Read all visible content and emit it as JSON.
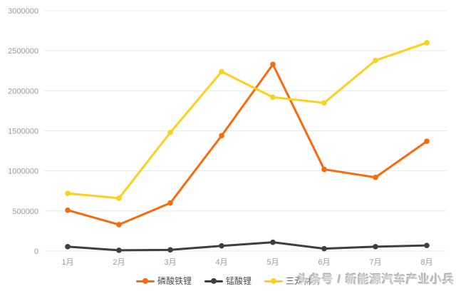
{
  "watermark": {
    "text": "头条号 / 新能源汽车产业小兵"
  },
  "colors": {
    "background": "#ffffff",
    "gridline": "#e9e9e9",
    "axis_text": "#9a9a9a",
    "legend_text": "#4d4d4d",
    "watermark_text": "#c9c9c9",
    "series_orange": "#f9690e",
    "series_dark": "#3f3f3f",
    "series_yellow": "#fdd01e"
  },
  "chart_data": {
    "type": "line",
    "title": "",
    "xlabel": "",
    "ylabel": "",
    "grid": true,
    "legend_position": "bottom",
    "marker": "circle",
    "categories": [
      "1月",
      "2月",
      "3月",
      "4月",
      "5月",
      "6月",
      "7月",
      "8月"
    ],
    "ylim": [
      0,
      3000000
    ],
    "ytick_interval": 500000,
    "ytick_labels": [
      "0",
      "500000",
      "1000000",
      "1500000",
      "2000000",
      "2500000",
      "3000000"
    ],
    "series": [
      {
        "name": "磷酸铁锂",
        "color": "#f9690e",
        "values": [
          510000,
          330000,
          600000,
          1440000,
          2330000,
          1020000,
          920000,
          1370000
        ]
      },
      {
        "name": "锰酸锂",
        "color": "#3f3f3f",
        "values": [
          55000,
          10000,
          15000,
          65000,
          110000,
          30000,
          55000,
          70000
        ]
      },
      {
        "name": "三元材料",
        "color": "#fdd01e",
        "values": [
          720000,
          660000,
          1480000,
          2240000,
          1920000,
          1850000,
          2380000,
          2600000
        ]
      }
    ]
  }
}
